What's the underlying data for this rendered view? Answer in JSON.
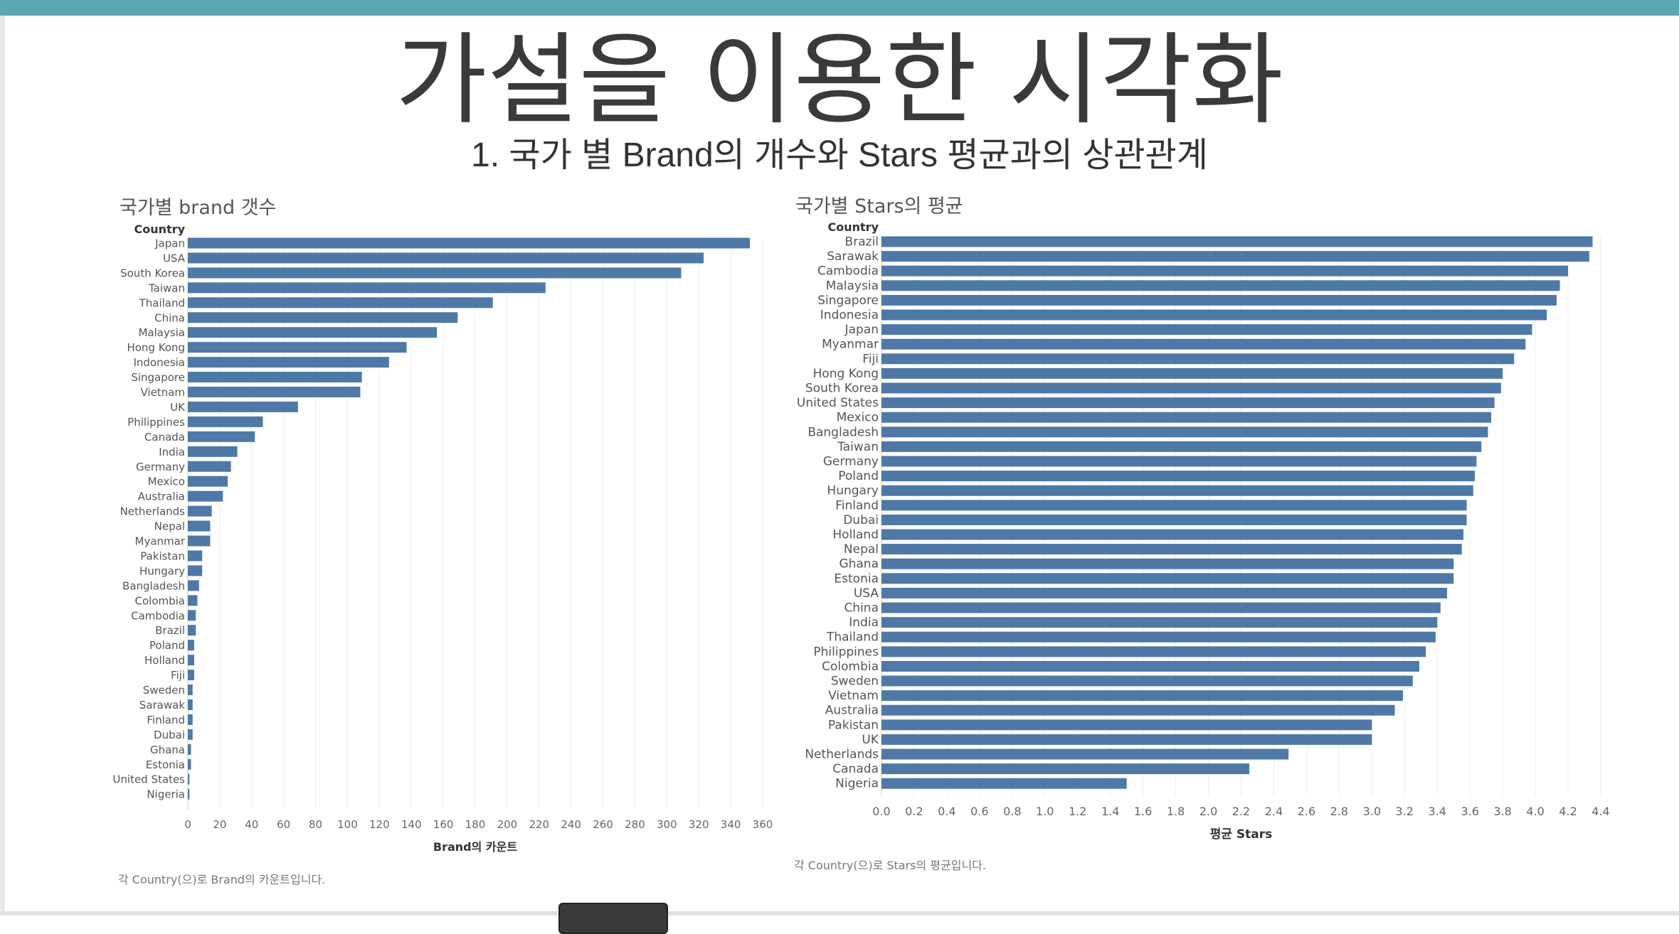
{
  "page": {
    "title": "가설을 이용한 시각화",
    "subtitle": "1. 국가 별 Brand의 개수와 Stars 평균과의 상관관계"
  },
  "colors": {
    "bar": "#4e79a7",
    "top_bar": "#5ba7b2",
    "grid": "#eeeeee"
  },
  "chart_data": [
    {
      "type": "bar",
      "orientation": "horizontal",
      "title": "국가별 brand 갯수",
      "row_header": "Country",
      "xlabel": "Brand의 카운트",
      "xlim": [
        0,
        360
      ],
      "xticks": [
        "0",
        "20",
        "40",
        "60",
        "80",
        "100",
        "120",
        "140",
        "160",
        "180",
        "200",
        "220",
        "240",
        "260",
        "280",
        "300",
        "320",
        "340",
        "360"
      ],
      "categories": [
        "Japan",
        "USA",
        "South Korea",
        "Taiwan",
        "Thailand",
        "China",
        "Malaysia",
        "Hong Kong",
        "Indonesia",
        "Singapore",
        "Vietnam",
        "UK",
        "Philippines",
        "Canada",
        "India",
        "Germany",
        "Mexico",
        "Australia",
        "Netherlands",
        "Nepal",
        "Myanmar",
        "Pakistan",
        "Hungary",
        "Bangladesh",
        "Colombia",
        "Cambodia",
        "Brazil",
        "Poland",
        "Holland",
        "Fiji",
        "Sweden",
        "Sarawak",
        "Finland",
        "Dubai",
        "Ghana",
        "Estonia",
        "United States",
        "Nigeria"
      ],
      "values": [
        352,
        323,
        309,
        224,
        191,
        169,
        156,
        137,
        126,
        109,
        108,
        69,
        47,
        42,
        31,
        27,
        25,
        22,
        15,
        14,
        14,
        9,
        9,
        7,
        6,
        5,
        5,
        4,
        4,
        4,
        3,
        3,
        3,
        3,
        2,
        2,
        1,
        1
      ],
      "grid": "vertical",
      "footnote": "각 Country(으)로 Brand의 카운트입니다."
    },
    {
      "type": "bar",
      "orientation": "horizontal",
      "title": "국가별 Stars의 평균",
      "row_header": "Country",
      "xlabel": "평균 Stars",
      "xlim": [
        0,
        4.4
      ],
      "xticks": [
        "0.0",
        "0.2",
        "0.4",
        "0.6",
        "0.8",
        "1.0",
        "1.2",
        "1.4",
        "1.6",
        "1.8",
        "2.0",
        "2.2",
        "2.4",
        "2.6",
        "2.8",
        "3.0",
        "3.2",
        "3.4",
        "3.6",
        "3.8",
        "4.0",
        "4.2",
        "4.4"
      ],
      "categories": [
        "Brazil",
        "Sarawak",
        "Cambodia",
        "Malaysia",
        "Singapore",
        "Indonesia",
        "Japan",
        "Myanmar",
        "Fiji",
        "Hong Kong",
        "South Korea",
        "United States",
        "Mexico",
        "Bangladesh",
        "Taiwan",
        "Germany",
        "Poland",
        "Hungary",
        "Finland",
        "Dubai",
        "Holland",
        "Nepal",
        "Ghana",
        "Estonia",
        "USA",
        "China",
        "India",
        "Thailand",
        "Philippines",
        "Colombia",
        "Sweden",
        "Vietnam",
        "Australia",
        "Pakistan",
        "UK",
        "Netherlands",
        "Canada",
        "Nigeria"
      ],
      "values": [
        4.35,
        4.33,
        4.2,
        4.15,
        4.13,
        4.07,
        3.98,
        3.94,
        3.87,
        3.8,
        3.79,
        3.75,
        3.73,
        3.71,
        3.67,
        3.64,
        3.63,
        3.62,
        3.58,
        3.58,
        3.56,
        3.55,
        3.5,
        3.5,
        3.46,
        3.42,
        3.4,
        3.39,
        3.33,
        3.29,
        3.25,
        3.19,
        3.14,
        3.0,
        3.0,
        2.49,
        2.25,
        1.5
      ],
      "grid": "vertical",
      "footnote": "각 Country(으)로 Stars의 평균입니다."
    }
  ]
}
